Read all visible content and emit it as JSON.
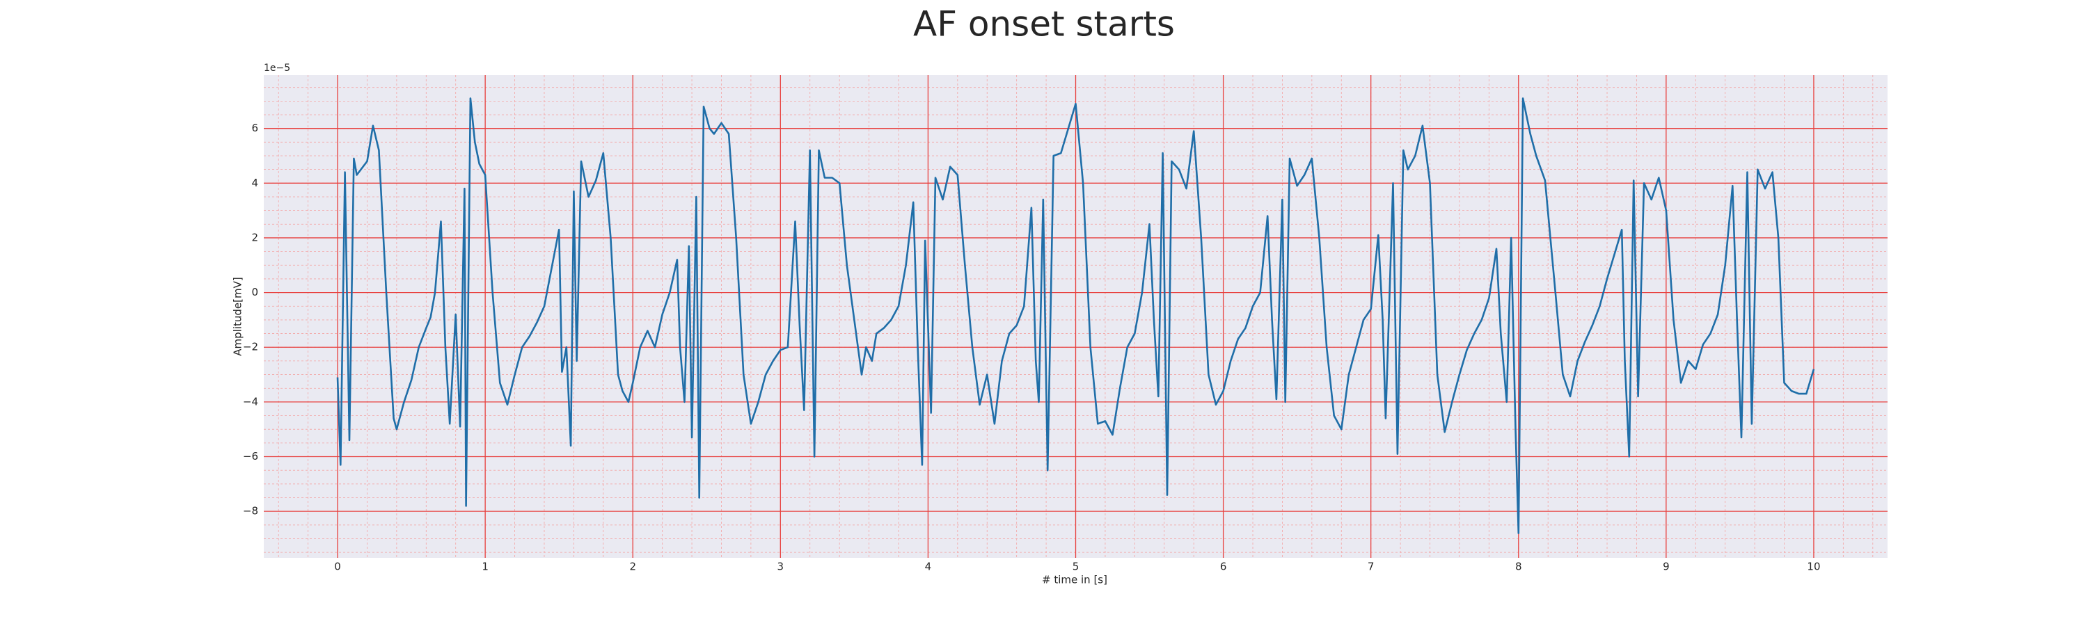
{
  "chart_data": {
    "type": "line",
    "title": "AF onset starts",
    "xlabel": "# time in [s]",
    "ylabel": "Amplitude[mV]",
    "offset_text": "1e−5",
    "color": "#1f6ea8",
    "grid": true,
    "minor_grid": true,
    "xlim": [
      -0.5,
      10.5
    ],
    "ylim": [
      -9.7,
      7.95
    ],
    "xticks": [
      0,
      1,
      2,
      3,
      4,
      5,
      6,
      7,
      8,
      9,
      10
    ],
    "yticks": [
      {
        "value": -8,
        "label": "−8"
      },
      {
        "value": -6,
        "label": "−6"
      },
      {
        "value": -4,
        "label": "−4"
      },
      {
        "value": -2,
        "label": "−2"
      },
      0,
      2,
      4,
      6
    ],
    "x": [
      0,
      0.02,
      0.05,
      0.08,
      0.11,
      0.13,
      0.2,
      0.24,
      0.28,
      0.33,
      0.38,
      0.4,
      0.45,
      0.5,
      0.55,
      0.6,
      0.63,
      0.66,
      0.7,
      0.73,
      0.76,
      0.8,
      0.83,
      0.86,
      0.87,
      0.9,
      0.93,
      0.96,
      1.0,
      1.05,
      1.1,
      1.15,
      1.2,
      1.25,
      1.3,
      1.35,
      1.4,
      1.5,
      1.52,
      1.55,
      1.58,
      1.6,
      1.62,
      1.65,
      1.7,
      1.75,
      1.8,
      1.85,
      1.9,
      1.93,
      1.97,
      2.0,
      2.05,
      2.1,
      2.15,
      2.2,
      2.25,
      2.3,
      2.32,
      2.35,
      2.38,
      2.4,
      2.43,
      2.45,
      2.48,
      2.52,
      2.55,
      2.6,
      2.65,
      2.7,
      2.75,
      2.8,
      2.85,
      2.9,
      2.95,
      3.0,
      3.05,
      3.1,
      3.13,
      3.16,
      3.2,
      3.23,
      3.26,
      3.3,
      3.35,
      3.4,
      3.45,
      3.5,
      3.55,
      3.58,
      3.62,
      3.65,
      3.7,
      3.75,
      3.8,
      3.85,
      3.9,
      3.93,
      3.96,
      3.98,
      4.02,
      4.05,
      4.1,
      4.15,
      4.2,
      4.25,
      4.3,
      4.35,
      4.4,
      4.45,
      4.5,
      4.55,
      4.6,
      4.65,
      4.7,
      4.73,
      4.75,
      4.78,
      4.81,
      4.85,
      4.9,
      4.95,
      5.0,
      5.05,
      5.1,
      5.15,
      5.2,
      5.25,
      5.3,
      5.35,
      5.4,
      5.45,
      5.5,
      5.53,
      5.56,
      5.59,
      5.62,
      5.65,
      5.7,
      5.75,
      5.8,
      5.85,
      5.9,
      5.95,
      6.0,
      6.05,
      6.1,
      6.15,
      6.2,
      6.25,
      6.3,
      6.33,
      6.36,
      6.4,
      6.42,
      6.45,
      6.5,
      6.55,
      6.6,
      6.65,
      6.7,
      6.75,
      6.8,
      6.85,
      6.9,
      6.95,
      7.0,
      7.05,
      7.08,
      7.1,
      7.15,
      7.18,
      7.22,
      7.25,
      7.3,
      7.35,
      7.4,
      7.45,
      7.5,
      7.55,
      7.6,
      7.65,
      7.7,
      7.75,
      7.8,
      7.85,
      7.88,
      7.92,
      7.95,
      7.98,
      8.0,
      8.03,
      8.08,
      8.12,
      8.18,
      8.25,
      8.3,
      8.35,
      8.4,
      8.45,
      8.5,
      8.55,
      8.6,
      8.7,
      8.72,
      8.75,
      8.78,
      8.81,
      8.85,
      8.9,
      8.95,
      9.0,
      9.05,
      9.1,
      9.15,
      9.2,
      9.25,
      9.3,
      9.35,
      9.4,
      9.45,
      9.48,
      9.51,
      9.55,
      9.58,
      9.62,
      9.67,
      9.72,
      9.76,
      9.8,
      9.85,
      9.9,
      9.95,
      10.0
    ],
    "values": [
      -3.1,
      -6.3,
      4.4,
      -5.4,
      4.9,
      4.3,
      4.8,
      6.1,
      5.2,
      0,
      -4.6,
      -5.0,
      -4.0,
      -3.2,
      -2,
      -1.3,
      -0.9,
      0,
      2.6,
      -2,
      -4.8,
      -0.8,
      -4.9,
      3.8,
      -7.8,
      7.1,
      5.5,
      4.7,
      4.3,
      0,
      -3.3,
      -4.1,
      -3,
      -2,
      -1.6,
      -1.1,
      -0.5,
      2.3,
      -2.9,
      -2,
      -5.6,
      3.7,
      -2.5,
      4.8,
      3.5,
      4.1,
      5.1,
      2,
      -3,
      -3.6,
      -4,
      -3.3,
      -2,
      -1.4,
      -2,
      -0.8,
      0,
      1.2,
      -2,
      -4,
      1.7,
      -5.3,
      3.5,
      -7.5,
      6.8,
      6,
      5.8,
      6.2,
      5.8,
      2,
      -3,
      -4.8,
      -4,
      -3,
      -2.5,
      -2.1,
      -2,
      2.6,
      -1.2,
      -4.3,
      5.2,
      -6,
      5.2,
      4.2,
      4.2,
      4,
      1,
      -1,
      -3,
      -2,
      -2.5,
      -1.5,
      -1.3,
      -1,
      -0.5,
      1,
      3.3,
      -2,
      -6.3,
      1.9,
      -4.4,
      4.2,
      3.4,
      4.6,
      4.3,
      1,
      -2,
      -4.1,
      -3,
      -4.8,
      -2.5,
      -1.5,
      -1.2,
      -0.5,
      3.1,
      -2.5,
      -4,
      3.4,
      -6.5,
      5,
      5.1,
      6,
      6.9,
      4,
      -2,
      -4.8,
      -4.7,
      -5.2,
      -3.5,
      -2,
      -1.5,
      0,
      2.5,
      -1,
      -3.8,
      5.1,
      -7.4,
      4.8,
      4.5,
      3.8,
      5.9,
      2,
      -3,
      -4.1,
      -3.6,
      -2.5,
      -1.7,
      -1.3,
      -0.5,
      0,
      2.8,
      -1,
      -3.9,
      3.4,
      -4,
      4.9,
      3.9,
      4.3,
      4.9,
      2,
      -2,
      -4.5,
      -5,
      -3,
      -2,
      -1,
      -0.6,
      2.1,
      -1,
      -4.6,
      4,
      -5.9,
      5.2,
      4.5,
      5,
      6.1,
      4,
      -3,
      -5.1,
      -4,
      -3,
      -2.1,
      -1.5,
      -1,
      -0.2,
      1.6,
      -1.5,
      -4,
      2,
      -5,
      -8.8,
      7.1,
      5.8,
      5,
      4.1,
      0,
      -3,
      -3.8,
      -2.5,
      -1.8,
      -1.2,
      -0.5,
      0.5,
      2.3,
      -2.5,
      -6,
      4.1,
      -3.8,
      4,
      3.4,
      4.2,
      3,
      -1,
      -3.3,
      -2.5,
      -2.8,
      -1.9,
      -1.5,
      -0.8,
      1,
      3.9,
      -1,
      -5.3,
      4.4,
      -4.8,
      4.5,
      3.8,
      4.4,
      2,
      -3.3,
      -3.6,
      -3.7,
      -3.7,
      -2.8
    ]
  }
}
